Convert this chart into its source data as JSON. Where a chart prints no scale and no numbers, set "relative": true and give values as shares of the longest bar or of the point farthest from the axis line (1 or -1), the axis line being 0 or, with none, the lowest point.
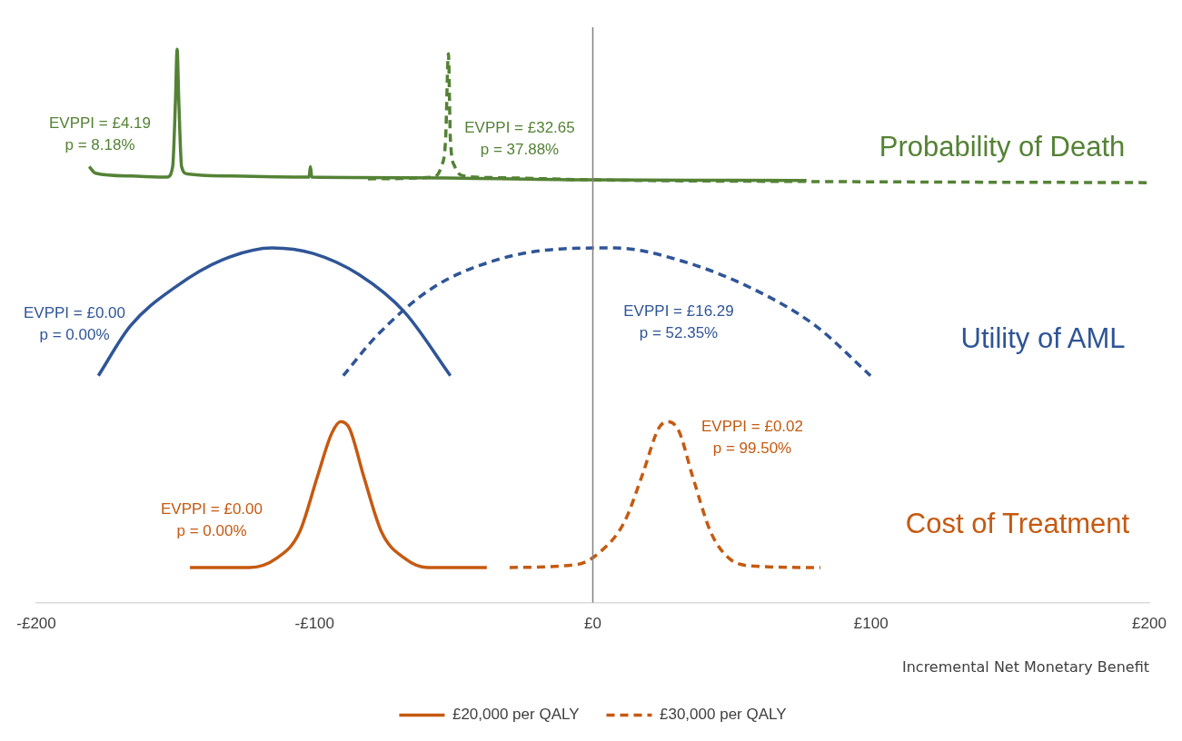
{
  "chart_data": {
    "type": "line",
    "relative": true,
    "xlabel": "Incremental Net Monetary Benefit",
    "xlim": [
      -200,
      200
    ],
    "xticks": [
      {
        "value": -200,
        "label": "-£200"
      },
      {
        "value": -100,
        "label": "-£100"
      },
      {
        "value": 0,
        "label": "£0"
      },
      {
        "value": 100,
        "label": "£100"
      },
      {
        "value": 200,
        "label": "£200"
      }
    ],
    "tick_labels": "x",
    "grid": false,
    "marker": "none",
    "legend": "bottom",
    "ref_lines": [
      {
        "axis": "x",
        "value": 0,
        "color": "#808080"
      }
    ],
    "series": [
      {
        "color": "#548235",
        "line_style": "solid",
        "x": [
          -181,
          -178.7,
          -166,
          -153,
          -151,
          -150,
          -149.4,
          -148.8,
          -147.8,
          -145.8,
          -130,
          -102,
          -101.5,
          -101,
          -67.7,
          0,
          76.8
        ],
        "values": [
          0.788,
          0.776,
          0.771,
          0.769,
          0.788,
          0.907,
          1.0,
          0.907,
          0.788,
          0.775,
          0.771,
          0.769,
          0.788,
          0.769,
          0.768,
          0.764,
          0.763
        ]
      },
      {
        "color": "#548235",
        "line_style": "dashed",
        "x": [
          -80.8,
          -57.8,
          -54.5,
          -52.9,
          -51.9,
          -51.2,
          -49.6,
          -46.3,
          -34.8,
          0,
          80.1,
          200
        ],
        "values": [
          0.766,
          0.769,
          0.788,
          0.839,
          0.992,
          0.839,
          0.788,
          0.771,
          0.768,
          0.764,
          0.761,
          0.759
        ]
      },
      {
        "color": "#2f5597",
        "line_style": "solid",
        "x": [
          -177.7,
          -166.2,
          -149.8,
          -133.3,
          -115.3,
          -100.5,
          -84.1,
          -67.7,
          -51.2
        ],
        "values": [
          0.41,
          0.5,
          0.571,
          0.619,
          0.641,
          0.631,
          0.593,
          0.525,
          0.41
        ]
      },
      {
        "color": "#2f5597",
        "line_style": "dashed",
        "x": [
          -89.7,
          -77.5,
          -57.8,
          -34.8,
          -11.8,
          7.9,
          30.9,
          57.1,
          80.1,
          99.8
        ],
        "values": [
          0.41,
          0.483,
          0.568,
          0.619,
          0.639,
          0.641,
          0.619,
          0.568,
          0.5,
          0.41
        ]
      },
      {
        "name": "£20,000 per QALY",
        "color": "#c55a11",
        "line_style": "solid",
        "x": [
          -144.8,
          -123.5,
          -113.6,
          -105.4,
          -98.9,
          -93.9,
          -90.6,
          -87.4,
          -82.4,
          -75.9,
          -67.7,
          -59.4,
          -38.1
        ],
        "values": [
          0.063,
          0.063,
          0.08,
          0.127,
          0.229,
          0.305,
          0.327,
          0.314,
          0.229,
          0.127,
          0.08,
          0.063,
          0.063
        ]
      },
      {
        "name": "£30,000 per QALY",
        "color": "#c55a11",
        "line_style": "dashed",
        "x": [
          -29.9,
          -5.3,
          3,
          11.2,
          17.7,
          23.6,
          26.9,
          30.9,
          35.8,
          42.4,
          48.9,
          57.1,
          81.8
        ],
        "values": [
          0.063,
          0.069,
          0.093,
          0.144,
          0.229,
          0.314,
          0.327,
          0.31,
          0.229,
          0.127,
          0.08,
          0.066,
          0.063
        ]
      }
    ],
    "annotations": [
      "EVPPI = £4.19\np = 8.18%",
      "EVPPI = £32.65\np = 37.88%",
      "Probability of Death",
      "EVPPI = £0.00\np = 0.00%",
      "EVPPI = £16.29\np = 52.35%",
      "Utility of AML",
      "EVPPI = £0.02\np = 99.50%",
      "EVPPI = £0.00\np = 0.00%",
      "Cost of Treatment"
    ]
  }
}
